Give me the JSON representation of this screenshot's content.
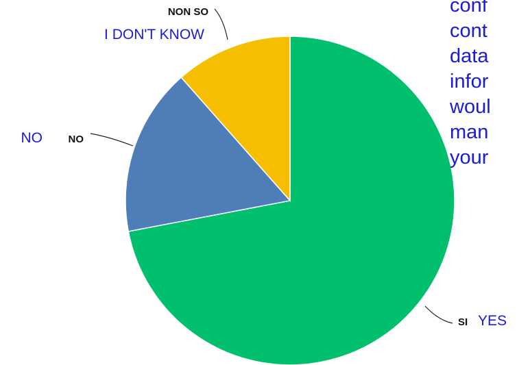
{
  "chart_data": {
    "type": "pie",
    "slices": [
      {
        "label": "SI",
        "translation": "YES",
        "value": 72,
        "color": "#00c06d"
      },
      {
        "label": "NO",
        "translation": "NO",
        "value": 16.5,
        "color": "#4e7db8"
      },
      {
        "label": "NON SO",
        "translation": "I DON'T KNOW",
        "value": 11.5,
        "color": "#f6be00"
      }
    ]
  },
  "side_text_lines": [
    "conf",
    "cont",
    "data",
    "infor",
    "woul",
    "man",
    "your"
  ],
  "colors": {
    "label_bold": "#111111",
    "translation": "#1a1adc",
    "leader": "#222222"
  }
}
